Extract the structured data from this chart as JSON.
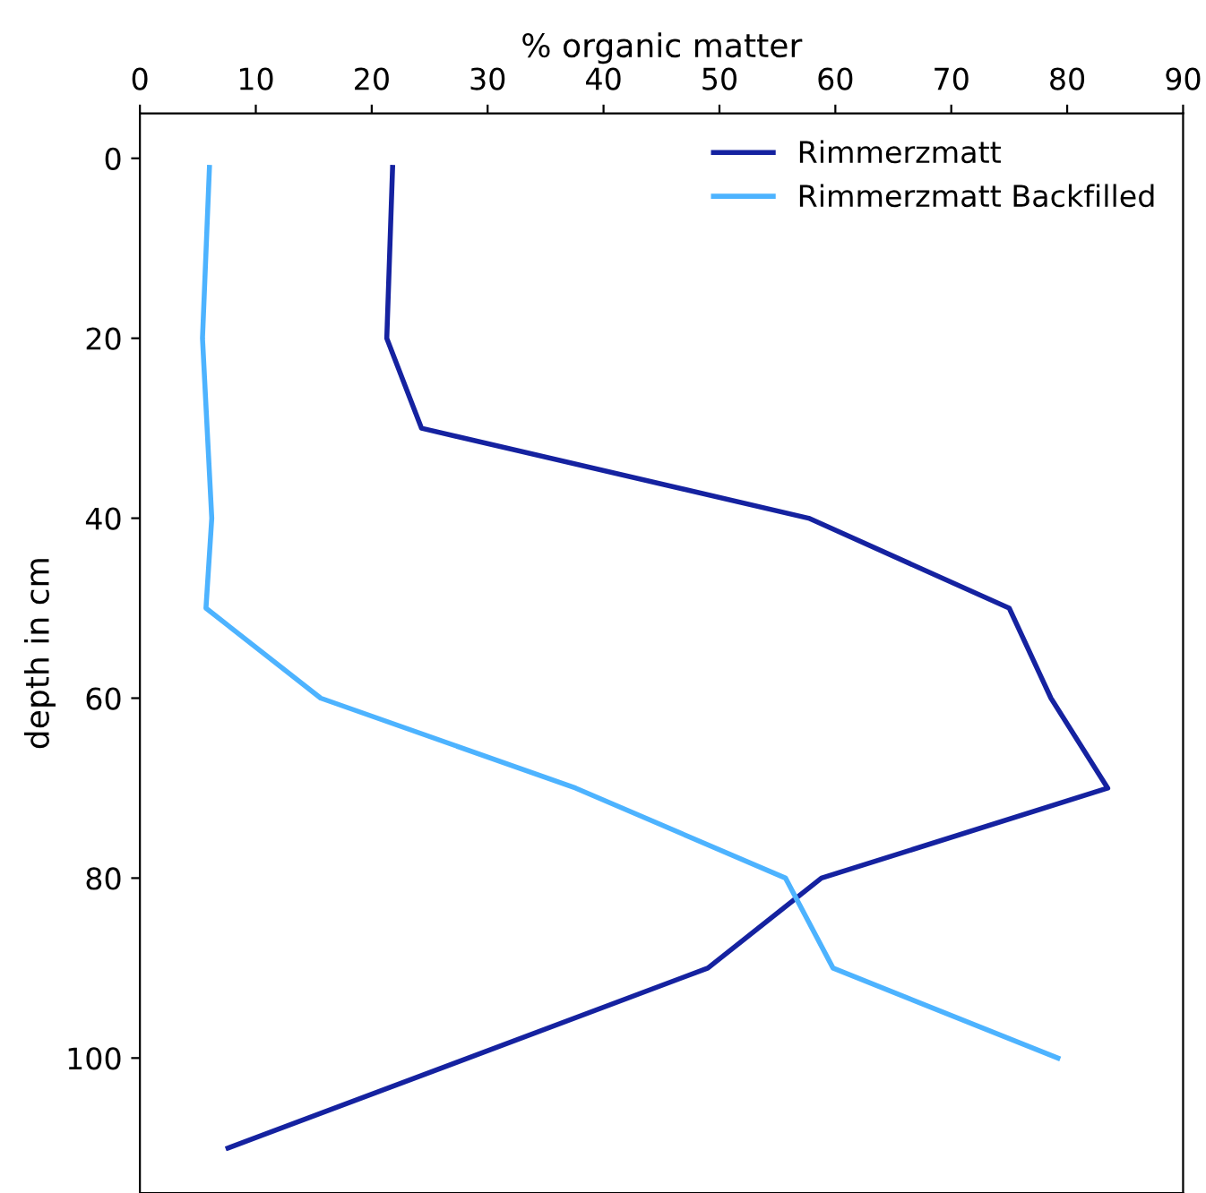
{
  "chart_data": {
    "type": "line",
    "xlabel": "% organic matter",
    "ylabel": "depth in cm",
    "xlim": [
      0,
      90
    ],
    "xticks": [
      0,
      10,
      20,
      30,
      40,
      50,
      60,
      70,
      80,
      90
    ],
    "ylim": [
      115,
      -5
    ],
    "yticks": [
      0,
      20,
      40,
      60,
      80,
      100
    ],
    "legend": "top right",
    "grid": false,
    "marker": "none",
    "line_style": "solid",
    "series": [
      {
        "name": "Rimmerzmatt",
        "color": "#1522a0",
        "x": [
          21.8,
          21.3,
          24.3,
          57.7,
          75.0,
          78.6,
          83.5,
          58.8,
          49.0,
          7.6
        ],
        "values": [
          1,
          20,
          30,
          40,
          50,
          60,
          70,
          80,
          90,
          110
        ]
      },
      {
        "name": "Rimmerzmatt Backfilled",
        "color": "#4db3ff",
        "x": [
          6.0,
          5.4,
          6.2,
          5.7,
          15.6,
          37.6,
          55.7,
          59.8,
          79.2
        ],
        "values": [
          1,
          20,
          40,
          50,
          60,
          70,
          80,
          90,
          100
        ]
      }
    ]
  }
}
